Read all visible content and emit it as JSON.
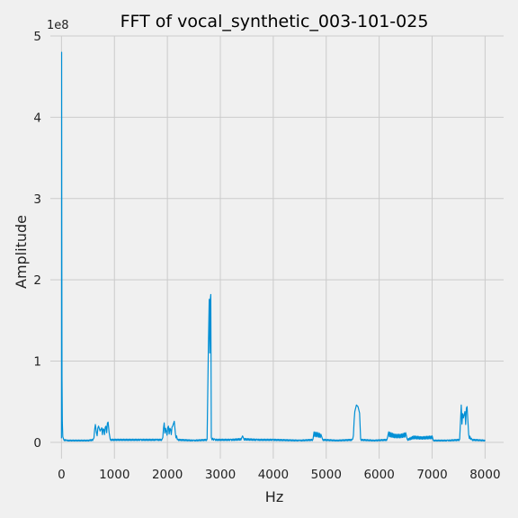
{
  "chart_data": {
    "type": "line",
    "title": "FFT of vocal_synthetic_003-101-025",
    "xlabel": "Hz",
    "ylabel": "Amplitude",
    "y_exponent_label": "1e8",
    "xlim": [
      -210,
      8350
    ],
    "ylim": [
      -0.2,
      5.0
    ],
    "xticks": [
      0,
      1000,
      2000,
      3000,
      4000,
      5000,
      6000,
      7000,
      8000
    ],
    "yticks": [
      0,
      1,
      2,
      3,
      4,
      5
    ],
    "grid": true,
    "legend": "none",
    "line_color": "#008fd5",
    "series": [
      {
        "units": "1e8",
        "base_level": 0.03,
        "points": [
          [
            0,
            0.05
          ],
          [
            3,
            4.8
          ],
          [
            6,
            2.6
          ],
          [
            10,
            0.8
          ],
          [
            16,
            0.25
          ],
          [
            25,
            0.07
          ],
          [
            40,
            0.04
          ],
          [
            100,
            0.03
          ],
          [
            300,
            0.03
          ],
          [
            500,
            0.03
          ],
          [
            600,
            0.04
          ],
          [
            640,
            0.22
          ],
          [
            660,
            0.12
          ],
          [
            700,
            0.2
          ],
          [
            730,
            0.14
          ],
          [
            760,
            0.18
          ],
          [
            800,
            0.16
          ],
          [
            840,
            0.2
          ],
          [
            880,
            0.25
          ],
          [
            900,
            0.12
          ],
          [
            920,
            0.04
          ],
          [
            1000,
            0.04
          ],
          [
            1200,
            0.04
          ],
          [
            1500,
            0.04
          ],
          [
            1800,
            0.04
          ],
          [
            1900,
            0.04
          ],
          [
            1940,
            0.24
          ],
          [
            1980,
            0.14
          ],
          [
            2020,
            0.2
          ],
          [
            2060,
            0.16
          ],
          [
            2100,
            0.2
          ],
          [
            2130,
            0.26
          ],
          [
            2150,
            0.12
          ],
          [
            2200,
            0.04
          ],
          [
            2500,
            0.03
          ],
          [
            2750,
            0.04
          ],
          [
            2775,
            1.2
          ],
          [
            2790,
            1.76
          ],
          [
            2800,
            1.1
          ],
          [
            2810,
            1.75
          ],
          [
            2820,
            1.82
          ],
          [
            2830,
            0.06
          ],
          [
            2900,
            0.04
          ],
          [
            3200,
            0.04
          ],
          [
            3400,
            0.05
          ],
          [
            3420,
            0.08
          ],
          [
            3440,
            0.05
          ],
          [
            3700,
            0.04
          ],
          [
            4000,
            0.04
          ],
          [
            4500,
            0.03
          ],
          [
            4750,
            0.04
          ],
          [
            4770,
            0.13
          ],
          [
            4850,
            0.12
          ],
          [
            4900,
            0.1
          ],
          [
            4930,
            0.04
          ],
          [
            5200,
            0.03
          ],
          [
            5500,
            0.04
          ],
          [
            5540,
            0.38
          ],
          [
            5570,
            0.46
          ],
          [
            5600,
            0.44
          ],
          [
            5630,
            0.36
          ],
          [
            5650,
            0.04
          ],
          [
            5900,
            0.03
          ],
          [
            6150,
            0.04
          ],
          [
            6180,
            0.13
          ],
          [
            6300,
            0.1
          ],
          [
            6400,
            0.1
          ],
          [
            6500,
            0.12
          ],
          [
            6530,
            0.04
          ],
          [
            6650,
            0.08
          ],
          [
            6800,
            0.07
          ],
          [
            7000,
            0.08
          ],
          [
            7020,
            0.03
          ],
          [
            7300,
            0.03
          ],
          [
            7520,
            0.04
          ],
          [
            7550,
            0.46
          ],
          [
            7590,
            0.3
          ],
          [
            7620,
            0.38
          ],
          [
            7660,
            0.44
          ],
          [
            7690,
            0.1
          ],
          [
            7750,
            0.04
          ],
          [
            8000,
            0.03
          ]
        ]
      }
    ]
  }
}
